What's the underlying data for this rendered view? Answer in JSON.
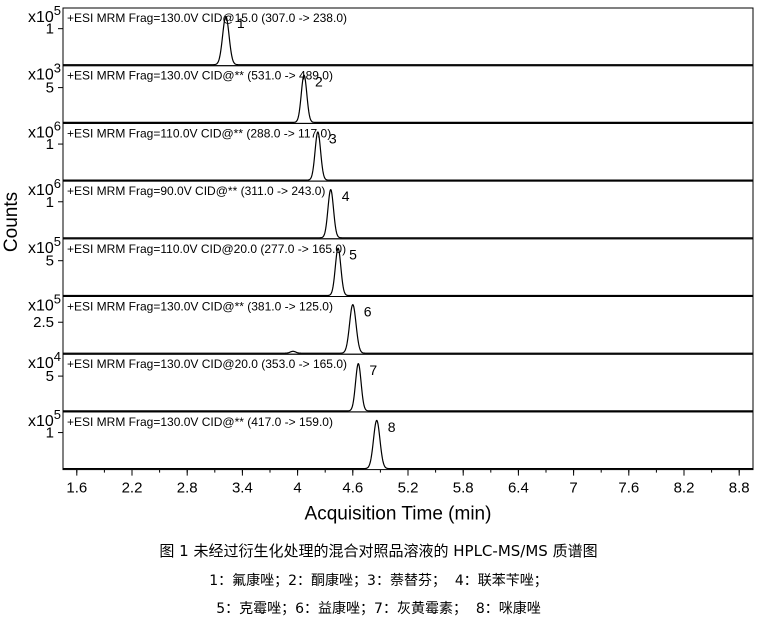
{
  "chart_data": {
    "type": "line",
    "xlabel": "Acquisition Time (min)",
    "ylabel": "Counts",
    "xlim": [
      1.45,
      8.95
    ],
    "xticks": [
      "1.6",
      "2.2",
      "2.8",
      "3.4",
      "4",
      "4.6",
      "5.2",
      "5.8",
      "6.4",
      "7",
      "7.6",
      "8.2",
      "8.8"
    ],
    "panels": [
      {
        "header": "+ESI MRM Frag=130.0V CID@15.0 (307.0 -> 238.0)",
        "exp_base": "x10",
        "exp": "5",
        "tick": "1",
        "tick_value": 1,
        "ymax": 1.45,
        "peak_label": "1",
        "peak_time": 3.22,
        "peak_height": 1.3,
        "peak_width": 0.035,
        "minor": []
      },
      {
        "header": "+ESI MRM Frag=130.0V CID@** (531.0 -> 489.0)",
        "exp_base": "x10",
        "exp": "3",
        "tick": "5",
        "tick_value": 5,
        "ymax": 7.5,
        "peak_label": "2",
        "peak_time": 4.07,
        "peak_height": 6.6,
        "peak_width": 0.03,
        "minor": []
      },
      {
        "header": "+ESI MRM Frag=110.0V CID@** (288.0 -> 117.0)",
        "exp_base": "x10",
        "exp": "6",
        "tick": "1",
        "tick_value": 1,
        "ymax": 1.45,
        "peak_label": "3",
        "peak_time": 4.22,
        "peak_height": 1.3,
        "peak_width": 0.03,
        "minor": []
      },
      {
        "header": "+ESI MRM Frag=90.0V CID@** (311.0 -> 243.0)",
        "exp_base": "x10",
        "exp": "6",
        "tick": "1",
        "tick_value": 1,
        "ymax": 1.45,
        "peak_label": "4",
        "peak_time": 4.36,
        "peak_height": 1.3,
        "peak_width": 0.03,
        "minor": []
      },
      {
        "header": "+ESI MRM Frag=110.0V CID@20.0 (277.0 -> 165.0)",
        "exp_base": "x10",
        "exp": "5",
        "tick": "5",
        "tick_value": 5,
        "ymax": 7.5,
        "peak_label": "5",
        "peak_time": 4.44,
        "peak_height": 6.6,
        "peak_width": 0.03,
        "minor": []
      },
      {
        "header": "+ESI MRM Frag=130.0V CID@** (381.0 -> 125.0)",
        "exp_base": "x10",
        "exp": "5",
        "tick": "2.5",
        "tick_value": 2.5,
        "ymax": 4.2,
        "peak_label": "6",
        "peak_time": 4.6,
        "peak_height": 3.8,
        "peak_width": 0.035,
        "minor": [
          {
            "time": 3.95,
            "height": 0.15,
            "width": 0.03
          }
        ]
      },
      {
        "header": "+ESI MRM Frag=130.0V CID@20.0 (353.0 -> 165.0)",
        "exp_base": "x10",
        "exp": "4",
        "tick": "5",
        "tick_value": 5,
        "ymax": 7.5,
        "peak_label": "7",
        "peak_time": 4.66,
        "peak_height": 6.6,
        "peak_width": 0.03,
        "minor": []
      },
      {
        "header": "+ESI MRM Frag=130.0V CID@** (417.0 -> 159.0)",
        "exp_base": "x10",
        "exp": "5",
        "tick": "1",
        "tick_value": 1,
        "ymax": 1.45,
        "peak_label": "8",
        "peak_time": 4.86,
        "peak_height": 1.3,
        "peak_width": 0.035,
        "minor": []
      }
    ]
  },
  "caption": {
    "title": "图 1 未经过衍生化处理的混合对照品溶液的 HPLC-MS/MS 质谱图",
    "line1": "1：氟康唑；2：酮康唑；3：萘替芬；  4：联苯苄唑；",
    "line2": "5：克霉唑；6：益康唑；7：灰黄霉素；  8：咪康唑"
  }
}
